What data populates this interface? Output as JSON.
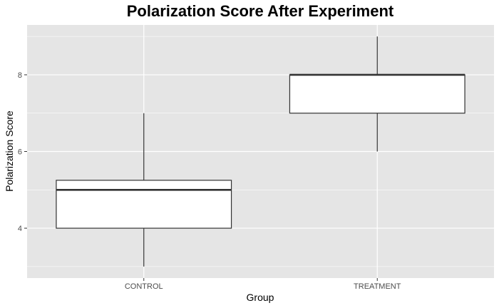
{
  "chart_data": {
    "type": "boxplot",
    "title": "Polarization Score After Experiment",
    "xlabel": "Group",
    "ylabel": "Polarization Score",
    "categories": [
      "CONTROL",
      "TREATMENT"
    ],
    "boxes": [
      {
        "category": "CONTROL",
        "min": 3,
        "q1": 4,
        "median": 5,
        "q3": 5.25,
        "max": 7
      },
      {
        "category": "TREATMENT",
        "min": 6,
        "q1": 7,
        "median": 8,
        "q3": 8,
        "max": 9
      }
    ],
    "ylim": [
      2.7,
      9.3
    ],
    "yticks": [
      4,
      6,
      8
    ],
    "yticks_minor": [
      3,
      5,
      7,
      9
    ],
    "grid": true,
    "colors": {
      "panel": "#e5e5e5",
      "grid": "#ffffff",
      "box_fill": "#ffffff",
      "box_stroke": "#333333",
      "tick_text": "#4d4d4d"
    }
  }
}
